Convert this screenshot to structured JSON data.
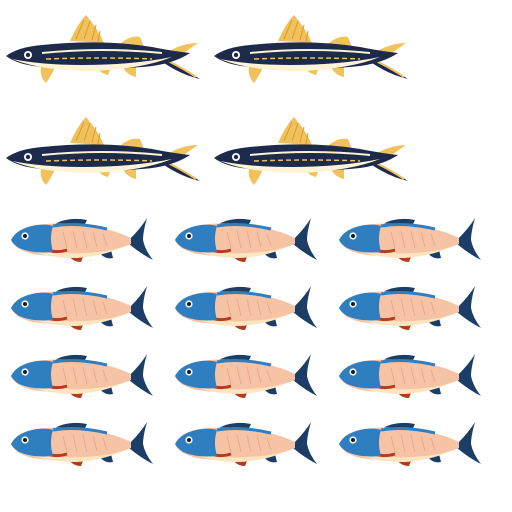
{
  "scene": {
    "description_items": [
      {
        "kind": "striped-catfish",
        "group": "shark-catfish-group",
        "count": 4,
        "rows": 2,
        "columns": 2
      },
      {
        "kind": "blue-pink-fish",
        "group": "pink-fish-group",
        "count": 12,
        "rows": 4,
        "columns": 3
      }
    ],
    "colors": {
      "background": "#ffffff",
      "catfish_body": "#1d2a4a",
      "catfish_fins": "#f1c15b",
      "catfish_belly": "#fdf3d6",
      "fish_head": "#2f7fc0",
      "fish_body": "#f6c3a5",
      "fish_belly": "#fde6bf",
      "fish_tail": "#1c3e66",
      "fish_accent": "#b53a1e"
    }
  }
}
